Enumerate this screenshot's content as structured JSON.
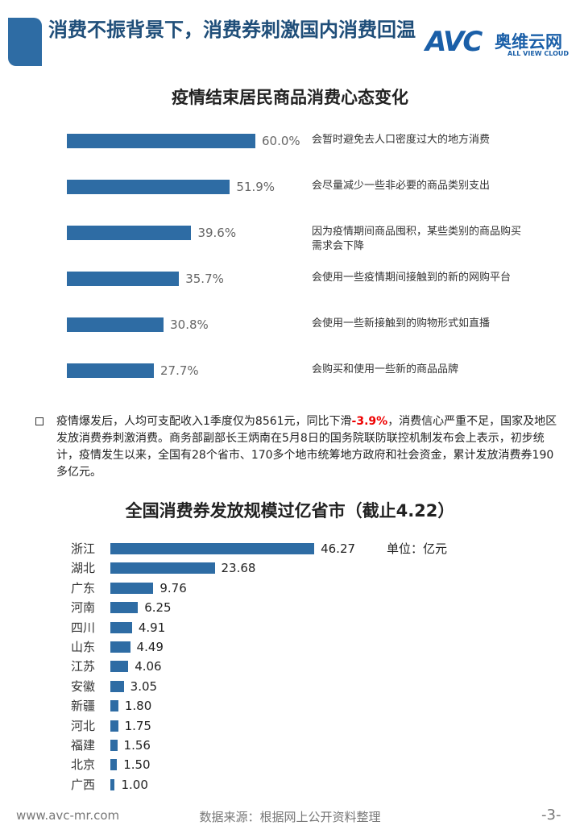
{
  "header": {
    "title": "消费不振背景下，消费券刺激国内消费回温",
    "logo_mark": "AVC",
    "logo_name": "奥维云网",
    "logo_sub": "ALL VIEW CLOUD"
  },
  "chart_data": [
    {
      "type": "bar",
      "title": "疫情结束居民商品消费心态变化",
      "color": "#2e6ca4",
      "categories": [
        "会暂时避免去人口密度过大的地方消费",
        "会尽量减少一些非必要的商品类别支出",
        "因为疫情期间商品囤积，某些类别的商品购买需求会下降",
        "会使用一些疫情期间接触到的新的网购平台",
        "会使用一些新接触到的购物形式如直播",
        "会购买和使用一些新的商品品牌"
      ],
      "values": [
        60.0,
        51.9,
        39.6,
        35.7,
        30.8,
        27.7
      ],
      "value_labels": [
        "60.0%",
        "51.9%",
        "39.6%",
        "35.7%",
        "30.8%",
        "27.7%"
      ]
    },
    {
      "type": "bar",
      "title": "全国消费券发放规模过亿省市（截止4.22）",
      "color": "#2e6ca4",
      "unit": "单位：亿元",
      "categories": [
        "浙江",
        "湖北",
        "广东",
        "河南",
        "四川",
        "山东",
        "江苏",
        "安徽",
        "新疆",
        "河北",
        "福建",
        "北京",
        "广西"
      ],
      "values": [
        46.27,
        23.68,
        9.76,
        6.25,
        4.91,
        4.49,
        4.06,
        3.05,
        1.8,
        1.75,
        1.56,
        1.5,
        1.0
      ],
      "value_labels": [
        "46.27",
        "23.68",
        "9.76",
        "6.25",
        "4.91",
        "4.49",
        "4.06",
        "3.05",
        "1.80",
        "1.75",
        "1.56",
        "1.50",
        "1.00"
      ]
    }
  ],
  "note": {
    "parts": [
      "疫情爆发后，人均可支配收入1季度仅为8561元，同比下滑",
      "-3.9%",
      "，消费信心严重不足，国家及地区发放消费券刺激消费。商务部副部长王炳南在5月8日的国务院联防联控机制发布会上表示，初步统计，疫情发生以来，全国有28个省市、170多个地市统筹地方政府和社会资金，累计发放消费券190多亿元。"
    ]
  },
  "footer": {
    "website": "www.avc-mr.com",
    "source": "数据来源：根据网上公开资料整理",
    "page": "-3-"
  }
}
